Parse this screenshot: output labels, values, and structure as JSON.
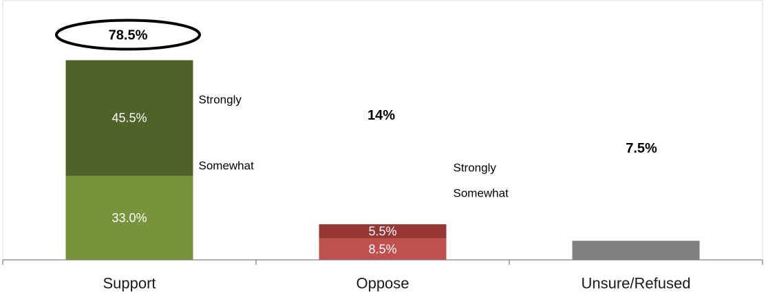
{
  "chart_data": {
    "type": "bar",
    "stacked": true,
    "categories": [
      "Support",
      "Oppose",
      "Unsure/Refused"
    ],
    "series": [
      {
        "name": "Somewhat",
        "values": [
          33.0,
          8.5,
          7.5
        ],
        "colors": [
          "#77933c",
          "#c0504d",
          "#7f7f7f"
        ]
      },
      {
        "name": "Strongly",
        "values": [
          45.5,
          5.5,
          0
        ],
        "colors": [
          "#4f6228",
          "#953735",
          "#7f7f7f"
        ]
      }
    ],
    "segment_labels": [
      [
        "33.0%",
        "8.5%",
        ""
      ],
      [
        "45.5%",
        "5.5%",
        ""
      ]
    ],
    "totals": [
      78.5,
      14,
      7.5
    ],
    "total_labels": [
      "78.5%",
      "14%",
      "7.5%"
    ],
    "side_labels": [
      {
        "strongly": "Strongly",
        "somewhat": "Somewhat"
      },
      {
        "strongly": "Strongly",
        "somewhat": "Somewhat"
      },
      {
        "strongly": "",
        "somewhat": ""
      }
    ],
    "ylim": [
      0,
      100
    ],
    "grid": false,
    "legend": "none",
    "highlighted_total_index": 0,
    "title": "",
    "xlabel": "",
    "ylabel": ""
  }
}
